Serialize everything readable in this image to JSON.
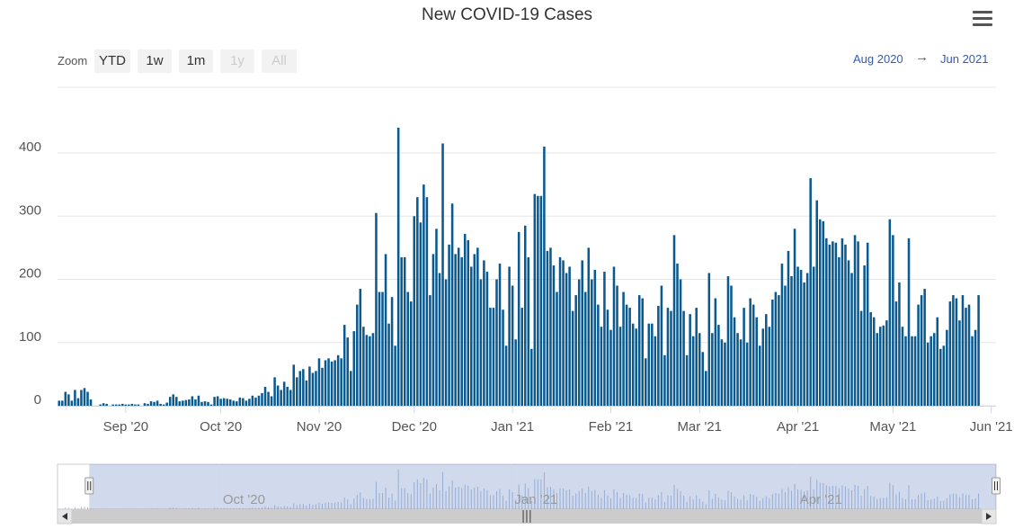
{
  "colors": {
    "bar": "#0b5a8f",
    "grid": "#e6e6e6",
    "navigator_mask": "rgba(102,133,194,0.3)",
    "navigator_line": "#a9bddb",
    "link": "#335cad"
  },
  "header": {
    "title": "New COVID-19 Cases",
    "menu_icon": "hamburger-menu-icon"
  },
  "zoom": {
    "label": "Zoom",
    "buttons": [
      {
        "label": "YTD",
        "enabled": true
      },
      {
        "label": "1w",
        "enabled": true
      },
      {
        "label": "1m",
        "enabled": true
      },
      {
        "label": "1y",
        "enabled": false
      },
      {
        "label": "All",
        "enabled": false
      }
    ]
  },
  "range": {
    "from": "Aug 2020",
    "arrow": "→",
    "to": "Jun 2021"
  },
  "navigator": {
    "labels": [
      "Oct '20",
      "Jan '21",
      "Apr '21"
    ],
    "handle_grip": "|||"
  },
  "chart_data": {
    "type": "bar",
    "title": "New COVID-19 Cases",
    "x_start": "2020-08-11",
    "x_end": "2021-06-02",
    "ylim": [
      0,
      440
    ],
    "yticks": [
      0,
      100,
      200,
      300,
      400
    ],
    "xticks": [
      {
        "date": "2020-09-01",
        "label": "Sep '20"
      },
      {
        "date": "2020-10-01",
        "label": "Oct '20"
      },
      {
        "date": "2020-11-01",
        "label": "Nov '20"
      },
      {
        "date": "2020-12-01",
        "label": "Dec '20"
      },
      {
        "date": "2021-01-01",
        "label": "Jan '21"
      },
      {
        "date": "2021-02-01",
        "label": "Feb '21"
      },
      {
        "date": "2021-03-01",
        "label": "Mar '21"
      },
      {
        "date": "2021-04-01",
        "label": "Apr '21"
      },
      {
        "date": "2021-05-01",
        "label": "May '21"
      },
      {
        "date": "2021-06-01",
        "label": "Jun '21"
      }
    ],
    "values": [
      8,
      8,
      22,
      18,
      8,
      25,
      12,
      25,
      28,
      22,
      10,
      0,
      0,
      2,
      4,
      3,
      0,
      2,
      2,
      2,
      3,
      2,
      2,
      3,
      2,
      2,
      0,
      4,
      3,
      7,
      6,
      8,
      3,
      2,
      5,
      14,
      18,
      14,
      7,
      8,
      9,
      10,
      15,
      10,
      16,
      6,
      7,
      6,
      2,
      14,
      15,
      11,
      12,
      11,
      10,
      8,
      7,
      13,
      12,
      8,
      11,
      16,
      13,
      16,
      20,
      30,
      22,
      15,
      45,
      32,
      25,
      38,
      30,
      25,
      65,
      45,
      55,
      58,
      40,
      62,
      52,
      55,
      75,
      60,
      72,
      75,
      70,
      72,
      80,
      75,
      128,
      108,
      55,
      118,
      160,
      185,
      125,
      112,
      110,
      115,
      305,
      180,
      180,
      240,
      130,
      172,
      95,
      440,
      235,
      235,
      180,
      165,
      300,
      330,
      290,
      350,
      330,
      175,
      240,
      280,
      210,
      415,
      200,
      255,
      320,
      240,
      250,
      235,
      272,
      262,
      220,
      240,
      250,
      200,
      230,
      212,
      155,
      155,
      200,
      225,
      152,
      95,
      220,
      190,
      105,
      275,
      155,
      285,
      235,
      90,
      335,
      332,
      332,
      410,
      245,
      250,
      222,
      180,
      235,
      230,
      210,
      220,
      150,
      175,
      200,
      230,
      180,
      250,
      200,
      215,
      160,
      125,
      212,
      152,
      120,
      220,
      190,
      125,
      180,
      160,
      155,
      130,
      122,
      175,
      170,
      75,
      130,
      130,
      110,
      158,
      190,
      80,
      155,
      150,
      270,
      225,
      200,
      150,
      80,
      145,
      110,
      155,
      115,
      85,
      55,
      210,
      115,
      170,
      128,
      105,
      100,
      205,
      190,
      140,
      115,
      105,
      155,
      100,
      170,
      160,
      140,
      95,
      122,
      145,
      125,
      168,
      180,
      175,
      225,
      190,
      245,
      205,
      280,
      220,
      215,
      195,
      210,
      360,
      220,
      325,
      295,
      292,
      265,
      255,
      260,
      258,
      235,
      265,
      255,
      230,
      210,
      270,
      260,
      150,
      222,
      258,
      148,
      140,
      115,
      125,
      127,
      135,
      295,
      270,
      165,
      195,
      125,
      110,
      265,
      110,
      110,
      160,
      175,
      185,
      100,
      110,
      115,
      140,
      90,
      95,
      120,
      165,
      175,
      170,
      135,
      175,
      155,
      160,
      110,
      120,
      175
    ],
    "navigator": {
      "range_start": "2020-08-21",
      "range_end": "2021-06-02"
    }
  }
}
